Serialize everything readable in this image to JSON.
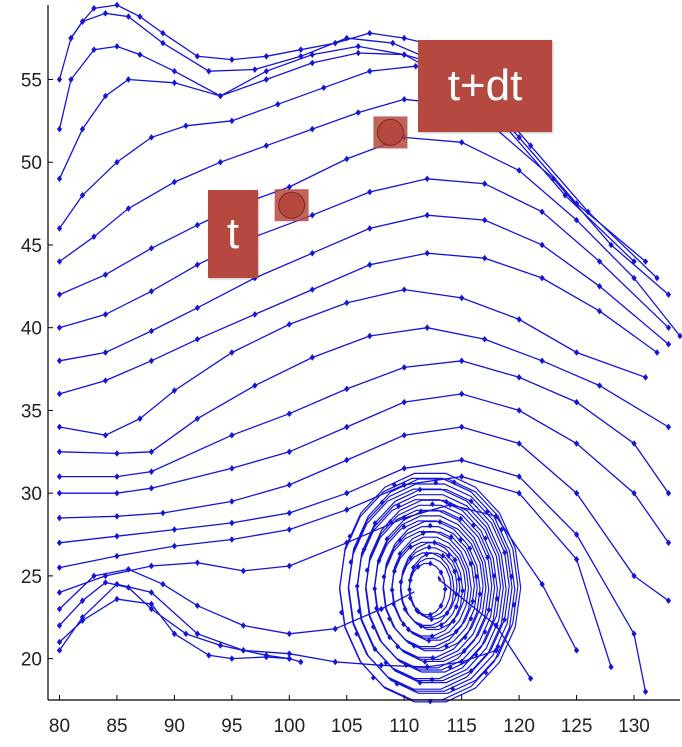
{
  "chart_data": {
    "type": "line",
    "title": "",
    "xlabel": "",
    "ylabel": "",
    "xlim": [
      79,
      134
    ],
    "ylim": [
      17.5,
      59.5
    ],
    "xticks": [
      80,
      85,
      90,
      95,
      100,
      105,
      110,
      115,
      120,
      125,
      130
    ],
    "yticks": [
      20,
      25,
      30,
      35,
      40,
      45,
      50,
      55
    ],
    "grid": false,
    "line_color": "#1515d6",
    "marker": "diamond",
    "series": [
      {
        "x": [
          80,
          82,
          85,
          88,
          92,
          96,
          100,
          104,
          108,
          112,
          115,
          118
        ],
        "y": [
          20.5,
          22.5,
          24.5,
          24,
          21.5,
          20.5,
          20.3,
          19.8,
          19.6,
          19.5,
          19.8,
          20.5
        ]
      },
      {
        "x": [
          80,
          82,
          84,
          86,
          88,
          91,
          94,
          96,
          98,
          100,
          101
        ],
        "y": [
          22,
          23.5,
          24.6,
          24.3,
          23,
          21.5,
          20.8,
          20.5,
          20.2,
          20,
          19.8
        ]
      },
      {
        "x": [
          80,
          82,
          85,
          88,
          90,
          93,
          95,
          98,
          100
        ],
        "y": [
          21,
          22.3,
          23.6,
          23.3,
          21.5,
          20.2,
          20,
          20.1,
          20
        ]
      },
      {
        "x": [
          80,
          83,
          86,
          89,
          92,
          96,
          100,
          104,
          108,
          113,
          118,
          121
        ],
        "y": [
          23,
          25,
          25.4,
          24.5,
          23.2,
          22,
          21.5,
          21.8,
          23,
          24.8,
          22,
          18.8
        ]
      },
      {
        "x": [
          80,
          84,
          88,
          92,
          96,
          100,
          105,
          110,
          114,
          118,
          122,
          125
        ],
        "y": [
          24,
          25,
          25.6,
          25.8,
          25.3,
          25.6,
          27,
          28.5,
          29.3,
          28.6,
          24.5,
          20.5
        ]
      },
      {
        "x": [
          80,
          85,
          90,
          95,
          100,
          105,
          110,
          115,
          120,
          125,
          128
        ],
        "y": [
          25.5,
          26.2,
          26.8,
          27.2,
          27.8,
          29,
          30.5,
          31,
          30,
          26,
          19.5
        ]
      },
      {
        "x": [
          80,
          85,
          90,
          95,
          100,
          105,
          110,
          115,
          120,
          125,
          130,
          131
        ],
        "y": [
          27,
          27.4,
          27.8,
          28.2,
          28.8,
          30,
          31.5,
          32,
          31,
          27.5,
          21.5,
          18
        ]
      },
      {
        "x": [
          80,
          85,
          89,
          95,
          100,
          105,
          110,
          115,
          120,
          125,
          130,
          133
        ],
        "y": [
          28.5,
          28.6,
          28.8,
          29.5,
          30.5,
          32,
          33.5,
          34,
          33,
          30,
          25,
          23.5
        ]
      },
      {
        "x": [
          80,
          85,
          88,
          95,
          100,
          105,
          110,
          115,
          120,
          125,
          130,
          133
        ],
        "y": [
          30,
          30,
          30.3,
          31.5,
          32.5,
          34,
          35.5,
          36,
          35,
          33,
          30,
          27
        ]
      },
      {
        "x": [
          80,
          85,
          88,
          95,
          100,
          105,
          110,
          115,
          120,
          125,
          130,
          133
        ],
        "y": [
          31,
          31,
          31.3,
          33.5,
          34.8,
          36.3,
          37.6,
          38,
          37,
          35.5,
          33,
          30
        ]
      },
      {
        "x": [
          80,
          85,
          88,
          92,
          97,
          102,
          107,
          112,
          117,
          122,
          127,
          133
        ],
        "y": [
          32.5,
          32.4,
          32.5,
          34.5,
          36.5,
          38.2,
          39.5,
          40,
          39.3,
          38,
          36.5,
          34
        ]
      },
      {
        "x": [
          80,
          84,
          87,
          90,
          95,
          100,
          105,
          110,
          115,
          120,
          125,
          131
        ],
        "y": [
          34,
          33.5,
          34.5,
          36.2,
          38.5,
          40.2,
          41.5,
          42.3,
          41.8,
          40.5,
          38.5,
          37
        ]
      },
      {
        "x": [
          80,
          84,
          88,
          92,
          97,
          102,
          107,
          112,
          117,
          122,
          127,
          132
        ],
        "y": [
          36,
          36.8,
          38,
          39.3,
          40.8,
          42.3,
          43.8,
          44.5,
          44.2,
          43,
          41,
          38.5
        ]
      },
      {
        "x": [
          80,
          84,
          88,
          92,
          97,
          102,
          107,
          112,
          117,
          122,
          127,
          133
        ],
        "y": [
          38,
          38.5,
          39.8,
          41.2,
          43,
          44.5,
          46,
          46.8,
          46.5,
          45,
          42.5,
          39
        ]
      },
      {
        "x": [
          80,
          84,
          88,
          92,
          97,
          102,
          107,
          112,
          117,
          122,
          127,
          133
        ],
        "y": [
          40,
          40.8,
          42.2,
          43.8,
          45.5,
          46.8,
          48.2,
          49,
          48.7,
          47,
          44,
          40
        ]
      },
      {
        "x": [
          80,
          84,
          88,
          92,
          96,
          100,
          105,
          110,
          115,
          120,
          125,
          130,
          134
        ],
        "y": [
          42,
          43.2,
          44.8,
          46.2,
          47.5,
          48.5,
          50.2,
          51.5,
          51.2,
          49.5,
          46.5,
          43,
          39.5
        ]
      },
      {
        "x": [
          80,
          83,
          86,
          90,
          94,
          98,
          102,
          106,
          110,
          114,
          118,
          123,
          128,
          133
        ],
        "y": [
          44,
          45.5,
          47.2,
          48.8,
          50,
          51,
          52,
          53,
          53.8,
          53.5,
          52,
          49,
          45,
          42
        ]
      },
      {
        "x": [
          80,
          82,
          85,
          88,
          91,
          95,
          99,
          103,
          107,
          111,
          116,
          121,
          126,
          132
        ],
        "y": [
          46,
          48,
          50,
          51.5,
          52.2,
          52.5,
          53.5,
          54.5,
          55.5,
          55.8,
          55,
          51,
          47,
          43
        ]
      },
      {
        "x": [
          80,
          82,
          84,
          86,
          90,
          94,
          98,
          102,
          106,
          110,
          115,
          120,
          125,
          131
        ],
        "y": [
          49,
          52,
          54,
          55,
          54.8,
          54,
          55,
          56,
          56.6,
          56.5,
          55.5,
          51.5,
          47.5,
          44
        ]
      },
      {
        "x": [
          80,
          81,
          83,
          85,
          87,
          90,
          94,
          98,
          102,
          106,
          110,
          114,
          119,
          124,
          130
        ],
        "y": [
          52,
          55,
          56.8,
          57,
          56.5,
          55.5,
          54,
          55.5,
          56.5,
          57,
          56.5,
          55,
          52,
          48,
          44
        ]
      },
      {
        "x": [
          80,
          81,
          82,
          84,
          86,
          89,
          93,
          97,
          101,
          105,
          109,
          113,
          118
        ],
        "y": [
          55,
          57.5,
          58.5,
          59,
          58.8,
          57.2,
          55.5,
          55.6,
          56.4,
          57.5,
          57.2,
          56,
          53
        ]
      },
      {
        "x": [
          81,
          82,
          83,
          85,
          87,
          89,
          92,
          95,
          98,
          101,
          104,
          107,
          110,
          113,
          116
        ],
        "y": [
          57.5,
          58.5,
          59.3,
          59.5,
          58.8,
          57.8,
          56.4,
          56.2,
          56.4,
          56.8,
          57.2,
          57.8,
          57.5,
          57,
          56
        ]
      }
    ],
    "vortex": {
      "center_x": 112,
      "center_y": 24.2,
      "core_radius_x": 0.9,
      "core_radius_y": 1.1
    },
    "annotations": [
      {
        "label": "t",
        "x": 100.2,
        "y": 47.4,
        "marker_color": "#b5493f"
      },
      {
        "label": "t+dt",
        "x": 108.8,
        "y": 51.8,
        "marker_color": "#b5493f"
      }
    ]
  }
}
